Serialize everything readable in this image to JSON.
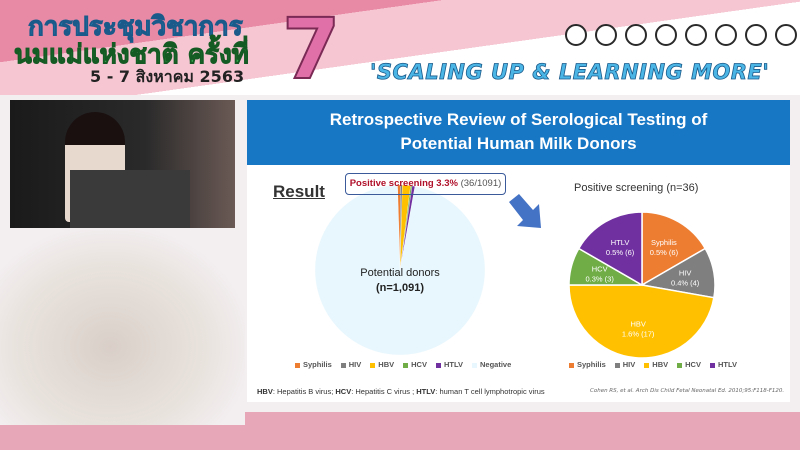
{
  "banner": {
    "title_line1": "การประชุมวิชาการ",
    "title_line2": "นมแม่แห่งชาติ ครั้งที่",
    "number": "7",
    "date": "5 - 7 สิงหาคม 2563",
    "slogan": "'SCALING UP & LEARNING MORE'"
  },
  "slide": {
    "title_line1": "Retrospective Review of Serological Testing of",
    "title_line2": "Potential Human Milk Donors",
    "result_heading": "Result",
    "callout_bold": "Positive screening 3.3%",
    "callout_rest": " (36/1091)",
    "footnote": "HBV: Hepatitis B virus; HCV: Hepatitis C virus ; HTLV: human T cell lymphotropic virus",
    "citation": "Cohen RS, et al. Arch Dis Child Fetal Neonatal Ed. 2010;95:F118-F120."
  },
  "chart_data": [
    {
      "type": "pie",
      "title": "",
      "categories": [
        "Syphilis",
        "HIV",
        "HBV",
        "HCV",
        "HTLV",
        "Negative"
      ],
      "values": [
        6,
        4,
        17,
        3,
        6,
        1055
      ],
      "colors": [
        "#ed7d31",
        "#7f7f7f",
        "#ffc000",
        "#70ad47",
        "#7030a0",
        "#e8f7fd"
      ],
      "label": "Potential donors",
      "sublabel": "(n=1,091)",
      "legend": "bottom"
    },
    {
      "type": "pie",
      "title": "Positive screening (n=36)",
      "categories": [
        "Syphilis",
        "HIV",
        "HBV",
        "HCV",
        "HTLV"
      ],
      "values": [
        6,
        4,
        17,
        3,
        6
      ],
      "data_labels": [
        "0.5% (6)",
        "0.4% (4)",
        "1.6% (17)",
        "0.3% (3)",
        "0.5% (6)"
      ],
      "colors": [
        "#ed7d31",
        "#7f7f7f",
        "#ffc000",
        "#70ad47",
        "#7030a0"
      ],
      "legend": "bottom"
    }
  ]
}
